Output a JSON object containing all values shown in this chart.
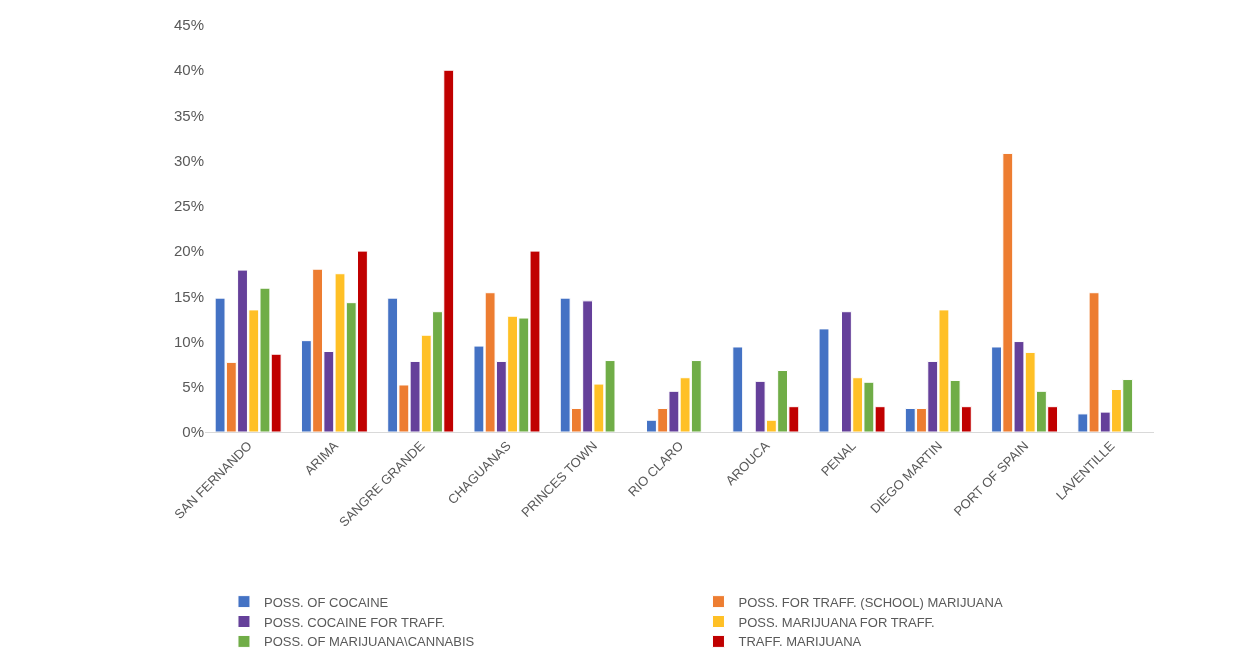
{
  "chart_data": {
    "type": "bar",
    "categories": [
      "SAN FERNANDO",
      "ARIMA",
      "SANGRE GRANDE",
      "CHAGUANAS",
      "PRINCES TOWN",
      "RIO CLARO",
      "AROUCA",
      "PENAL",
      "DIEGO MARTIN",
      "PORT OF SPAIN",
      "LAVENTILLE"
    ],
    "series": [
      {
        "name": "POSS. OF COCAINE",
        "color": "#4472c4",
        "values": [
          14.8,
          10.1,
          14.8,
          9.5,
          14.8,
          1.3,
          9.4,
          11.4,
          2.6,
          9.4,
          2.0
        ]
      },
      {
        "name": "POSS. FOR TRAFF. (SCHOOL) MARIJUANA",
        "color": "#ed7d31",
        "values": [
          7.7,
          18.0,
          5.2,
          15.4,
          2.6,
          2.6,
          null,
          null,
          2.6,
          30.8,
          15.4
        ]
      },
      {
        "name": "POSS. COCAINE FOR TRAFF.",
        "color": "#65409a",
        "values": [
          17.9,
          8.9,
          7.8,
          7.8,
          14.5,
          4.5,
          5.6,
          13.3,
          7.8,
          10.0,
          2.2
        ]
      },
      {
        "name": "POSS. MARIJUANA FOR TRAFF.",
        "color": "#ffc026",
        "values": [
          13.5,
          17.5,
          10.7,
          12.8,
          5.3,
          6.0,
          1.3,
          6.0,
          13.5,
          8.8,
          4.7
        ]
      },
      {
        "name": "POSS. OF MARIJUANA\\CANNABIS",
        "color": "#70ad47",
        "values": [
          15.9,
          14.3,
          13.3,
          12.6,
          7.9,
          7.9,
          6.8,
          5.5,
          5.7,
          4.5,
          5.8
        ]
      },
      {
        "name": "TRAFF. MARIJUANA",
        "color": "#c00000",
        "values": [
          8.6,
          20.0,
          40.0,
          20.0,
          null,
          null,
          2.8,
          2.8,
          2.8,
          2.8,
          null
        ]
      }
    ],
    "ylim": [
      0,
      45
    ],
    "yticks": [
      {
        "value": 0,
        "label": "0%"
      },
      {
        "value": 5,
        "label": "5%"
      },
      {
        "value": 10,
        "label": "10%"
      },
      {
        "value": 15,
        "label": "15%"
      },
      {
        "value": 20,
        "label": "20%"
      },
      {
        "value": 25,
        "label": "25%"
      },
      {
        "value": 30,
        "label": "30%"
      },
      {
        "value": 35,
        "label": "35%"
      },
      {
        "value": 40,
        "label": "40%"
      },
      {
        "value": 45,
        "label": "45%"
      }
    ],
    "grid": false,
    "legend": "bottom"
  }
}
